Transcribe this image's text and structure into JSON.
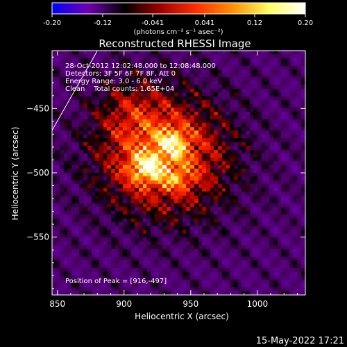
{
  "chart_data": {
    "type": "heatmap",
    "title": "Reconstructed RHESSI Image",
    "colorbar": {
      "ticks": [
        "-0.20",
        "-0.12",
        "-0.041",
        "0.041",
        "0.12",
        "0.20"
      ],
      "tick_values": [
        -0.2,
        -0.12,
        -0.041,
        0.041,
        0.12,
        0.2
      ],
      "range": [
        -0.2,
        0.2
      ],
      "unit_label": "(photons cm⁻² s⁻¹ asec⁻²)",
      "colormap": [
        "#0000ff",
        "#7000b0",
        "#000000",
        "#a00000",
        "#ff3000",
        "#ff9000",
        "#ffff60",
        "#ffffff"
      ]
    },
    "info_lines": [
      "28-Oct-2012 12:02:48.000 to 12:08:48.000",
      "Detectors: 3F 5F 6F 7F 8F, Att 0",
      "Energy Range: 3.0 - 6.0 keV",
      "Clean    Total counts: 1.65E+04"
    ],
    "peak_label": "Position of Peak = [916,-497]",
    "peak": {
      "x": 916,
      "y": -497
    },
    "secondary_peak": {
      "x": 937,
      "y": -477
    },
    "xlabel": "Heliocentric X (arcsec)",
    "ylabel": "Heliocentric Y (arcsec)",
    "xlim": [
      846,
      1036
    ],
    "ylim": [
      -595,
      -405
    ],
    "x_ticks": [
      850,
      900,
      950,
      1000
    ],
    "y_ticks": [
      -550,
      -500,
      -450
    ],
    "limb_line": {
      "x": [
        846,
        880
      ],
      "y": [
        -467,
        -405
      ]
    }
  },
  "footer": {
    "timestamp": "15-May-2022 17:21"
  }
}
